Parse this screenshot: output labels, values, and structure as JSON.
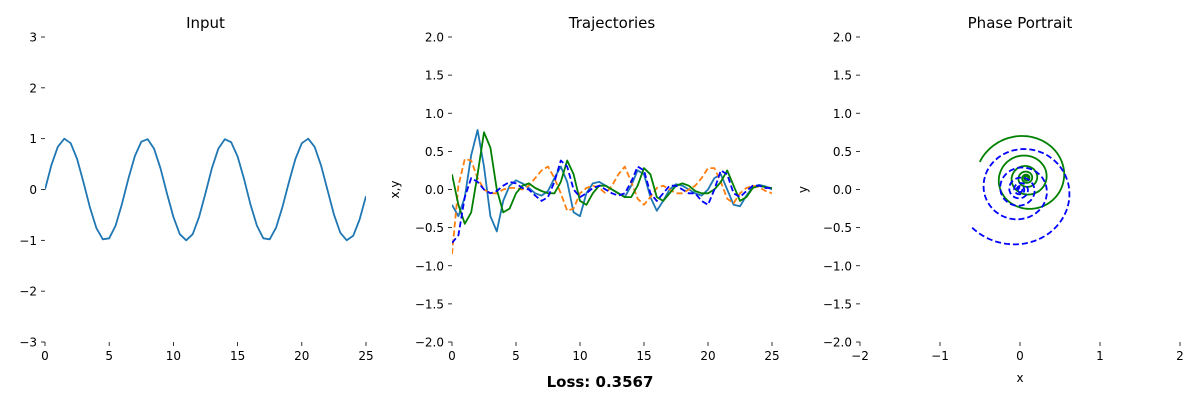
{
  "figure": {
    "loss_text": "Loss: 0.3567"
  },
  "chart_data": [
    {
      "type": "line",
      "title": "Input",
      "xlabel": "",
      "ylabel": "",
      "xlim": [
        0,
        25
      ],
      "ylim": [
        -3,
        3
      ],
      "xticks": [
        0,
        5,
        10,
        15,
        20,
        25
      ],
      "yticks": [
        -3,
        -2,
        -1,
        0,
        1,
        2,
        3
      ],
      "grid": false,
      "series": [
        {
          "color": "#1f77b4",
          "dash": "solid",
          "points": [
            [
              0,
              0
            ],
            [
              0.5,
              0.48
            ],
            [
              1,
              0.84
            ],
            [
              1.5,
              1.0
            ],
            [
              2,
              0.91
            ],
            [
              2.5,
              0.6
            ],
            [
              3,
              0.14
            ],
            [
              3.5,
              -0.35
            ],
            [
              4,
              -0.76
            ],
            [
              4.5,
              -0.98
            ],
            [
              5,
              -0.96
            ],
            [
              5.5,
              -0.71
            ],
            [
              6,
              -0.28
            ],
            [
              6.5,
              0.22
            ],
            [
              7,
              0.66
            ],
            [
              7.5,
              0.94
            ],
            [
              8,
              0.99
            ],
            [
              8.5,
              0.8
            ],
            [
              9,
              0.41
            ],
            [
              9.5,
              -0.08
            ],
            [
              10,
              -0.54
            ],
            [
              10.5,
              -0.88
            ],
            [
              11,
              -1.0
            ],
            [
              11.5,
              -0.88
            ],
            [
              12,
              -0.54
            ],
            [
              12.5,
              -0.07
            ],
            [
              13,
              0.42
            ],
            [
              13.5,
              0.8
            ],
            [
              14,
              0.99
            ],
            [
              14.5,
              0.93
            ],
            [
              15,
              0.65
            ],
            [
              15.5,
              0.21
            ],
            [
              16,
              -0.29
            ],
            [
              16.5,
              -0.71
            ],
            [
              17,
              -0.96
            ],
            [
              17.5,
              -0.98
            ],
            [
              18,
              -0.75
            ],
            [
              18.5,
              -0.34
            ],
            [
              19,
              0.15
            ],
            [
              19.5,
              0.6
            ],
            [
              20,
              0.91
            ],
            [
              20.5,
              1.0
            ],
            [
              21,
              0.84
            ],
            [
              21.5,
              0.47
            ],
            [
              22,
              -0.01
            ],
            [
              22.5,
              -0.49
            ],
            [
              23,
              -0.85
            ],
            [
              23.5,
              -1.0
            ],
            [
              24,
              -0.91
            ],
            [
              24.5,
              -0.59
            ],
            [
              25,
              -0.13
            ]
          ]
        }
      ]
    },
    {
      "type": "line",
      "title": "Trajectories",
      "xlabel": "",
      "ylabel": "x,y",
      "xlim": [
        0,
        25
      ],
      "ylim": [
        -2,
        2
      ],
      "xticks": [
        0,
        5,
        10,
        15,
        20,
        25
      ],
      "yticks": [
        -2.0,
        -1.5,
        -1.0,
        -0.5,
        0.0,
        0.5,
        1.0,
        1.5,
        2.0
      ],
      "grid": false,
      "series": [
        {
          "color": "#1f77b4",
          "dash": "solid",
          "points": [
            [
              0,
              -0.2
            ],
            [
              0.5,
              -0.35
            ],
            [
              1,
              -0.1
            ],
            [
              1.5,
              0.45
            ],
            [
              2,
              0.78
            ],
            [
              2.5,
              0.3
            ],
            [
              3,
              -0.35
            ],
            [
              3.5,
              -0.55
            ],
            [
              4,
              -0.15
            ],
            [
              4.5,
              0.05
            ],
            [
              5,
              0.12
            ],
            [
              5.5,
              0.08
            ],
            [
              6,
              0.02
            ],
            [
              6.5,
              -0.05
            ],
            [
              7,
              -0.08
            ],
            [
              7.5,
              -0.02
            ],
            [
              8,
              0.15
            ],
            [
              8.5,
              0.3
            ],
            [
              9,
              0.1
            ],
            [
              9.5,
              -0.3
            ],
            [
              10,
              -0.35
            ],
            [
              10.5,
              -0.05
            ],
            [
              11,
              0.08
            ],
            [
              11.5,
              0.1
            ],
            [
              12,
              0.05
            ],
            [
              12.5,
              0.0
            ],
            [
              13,
              -0.05
            ],
            [
              13.5,
              -0.1
            ],
            [
              14,
              0.05
            ],
            [
              14.5,
              0.25
            ],
            [
              15,
              0.2
            ],
            [
              15.5,
              -0.1
            ],
            [
              16,
              -0.28
            ],
            [
              16.5,
              -0.15
            ],
            [
              17,
              0.0
            ],
            [
              17.5,
              0.07
            ],
            [
              18,
              0.05
            ],
            [
              18.5,
              0.0
            ],
            [
              19,
              -0.05
            ],
            [
              19.5,
              -0.08
            ],
            [
              20,
              0.0
            ],
            [
              20.5,
              0.15
            ],
            [
              21,
              0.2
            ],
            [
              21.5,
              0.0
            ],
            [
              22,
              -0.2
            ],
            [
              22.5,
              -0.22
            ],
            [
              23,
              -0.08
            ],
            [
              23.5,
              0.03
            ],
            [
              24,
              0.06
            ],
            [
              24.5,
              0.04
            ],
            [
              25,
              0.0
            ]
          ]
        },
        {
          "color": "#ff7f0e",
          "dash": "dashed",
          "points": [
            [
              0,
              -0.85
            ],
            [
              0.5,
              0.05
            ],
            [
              1,
              0.4
            ],
            [
              1.5,
              0.38
            ],
            [
              2,
              0.15
            ],
            [
              2.5,
              0.0
            ],
            [
              3,
              -0.05
            ],
            [
              3.5,
              -0.05
            ],
            [
              4,
              0.0
            ],
            [
              4.5,
              0.02
            ],
            [
              5,
              0.02
            ],
            [
              5.5,
              0.0
            ],
            [
              6,
              0.05
            ],
            [
              6.5,
              0.15
            ],
            [
              7,
              0.25
            ],
            [
              7.5,
              0.3
            ],
            [
              8,
              0.15
            ],
            [
              8.5,
              -0.05
            ],
            [
              9,
              -0.28
            ],
            [
              9.5,
              -0.25
            ],
            [
              10,
              -0.05
            ],
            [
              10.5,
              0.02
            ],
            [
              11,
              0.05
            ],
            [
              11.5,
              0.02
            ],
            [
              12,
              -0.05
            ],
            [
              12.5,
              0.05
            ],
            [
              13,
              0.2
            ],
            [
              13.5,
              0.3
            ],
            [
              14,
              0.1
            ],
            [
              14.5,
              -0.12
            ],
            [
              15,
              -0.2
            ],
            [
              15.5,
              -0.1
            ],
            [
              16,
              0.02
            ],
            [
              16.5,
              0.05
            ],
            [
              17,
              0.0
            ],
            [
              17.5,
              -0.05
            ],
            [
              18,
              -0.05
            ],
            [
              18.5,
              0.0
            ],
            [
              19,
              0.05
            ],
            [
              19.5,
              0.15
            ],
            [
              20,
              0.28
            ],
            [
              20.5,
              0.28
            ],
            [
              21,
              0.1
            ],
            [
              21.5,
              -0.12
            ],
            [
              22,
              -0.18
            ],
            [
              22.5,
              -0.05
            ],
            [
              23,
              0.02
            ],
            [
              23.5,
              0.05
            ],
            [
              24,
              0.03
            ],
            [
              24.5,
              -0.02
            ],
            [
              25,
              -0.05
            ]
          ]
        },
        {
          "color": "#008000",
          "dash": "solid",
          "points": [
            [
              0,
              0.2
            ],
            [
              0.5,
              -0.2
            ],
            [
              1,
              -0.45
            ],
            [
              1.5,
              -0.3
            ],
            [
              2,
              0.2
            ],
            [
              2.5,
              0.75
            ],
            [
              3,
              0.55
            ],
            [
              3.5,
              0.0
            ],
            [
              4,
              -0.3
            ],
            [
              4.5,
              -0.25
            ],
            [
              5,
              -0.05
            ],
            [
              5.5,
              0.05
            ],
            [
              6,
              0.08
            ],
            [
              6.5,
              0.02
            ],
            [
              7,
              -0.02
            ],
            [
              7.5,
              -0.05
            ],
            [
              8,
              -0.05
            ],
            [
              8.5,
              0.1
            ],
            [
              9,
              0.38
            ],
            [
              9.5,
              0.2
            ],
            [
              10,
              -0.15
            ],
            [
              10.5,
              -0.2
            ],
            [
              11,
              -0.05
            ],
            [
              11.5,
              0.05
            ],
            [
              12,
              0.05
            ],
            [
              12.5,
              0.0
            ],
            [
              13,
              -0.05
            ],
            [
              13.5,
              -0.1
            ],
            [
              14,
              -0.1
            ],
            [
              14.5,
              0.05
            ],
            [
              15,
              0.28
            ],
            [
              15.5,
              0.2
            ],
            [
              16,
              -0.1
            ],
            [
              16.5,
              -0.15
            ],
            [
              17,
              -0.05
            ],
            [
              17.5,
              0.05
            ],
            [
              18,
              0.08
            ],
            [
              18.5,
              0.05
            ],
            [
              19,
              -0.02
            ],
            [
              19.5,
              -0.05
            ],
            [
              20,
              -0.05
            ],
            [
              20.5,
              0.0
            ],
            [
              21,
              0.1
            ],
            [
              21.5,
              0.25
            ],
            [
              22,
              0.05
            ],
            [
              22.5,
              -0.15
            ],
            [
              23,
              -0.1
            ],
            [
              23.5,
              0.02
            ],
            [
              24,
              0.05
            ],
            [
              24.5,
              0.03
            ],
            [
              25,
              0.02
            ]
          ]
        },
        {
          "color": "#0000ff",
          "dash": "dashed",
          "points": [
            [
              0,
              -0.7
            ],
            [
              0.5,
              -0.6
            ],
            [
              1,
              -0.1
            ],
            [
              1.5,
              0.15
            ],
            [
              2,
              0.1
            ],
            [
              2.5,
              0.0
            ],
            [
              3,
              -0.05
            ],
            [
              3.5,
              -0.02
            ],
            [
              4,
              0.05
            ],
            [
              4.5,
              0.1
            ],
            [
              5,
              0.08
            ],
            [
              5.5,
              0.02
            ],
            [
              6,
              0.0
            ],
            [
              6.5,
              -0.08
            ],
            [
              7,
              -0.15
            ],
            [
              7.5,
              -0.1
            ],
            [
              8,
              0.1
            ],
            [
              8.5,
              0.38
            ],
            [
              9,
              0.3
            ],
            [
              9.5,
              0.0
            ],
            [
              10,
              -0.1
            ],
            [
              10.5,
              -0.05
            ],
            [
              11,
              0.02
            ],
            [
              11.5,
              0.05
            ],
            [
              12,
              0.0
            ],
            [
              12.5,
              -0.05
            ],
            [
              13,
              -0.08
            ],
            [
              13.5,
              -0.05
            ],
            [
              14,
              0.1
            ],
            [
              14.5,
              0.3
            ],
            [
              15,
              0.25
            ],
            [
              15.5,
              -0.05
            ],
            [
              16,
              -0.15
            ],
            [
              16.5,
              -0.05
            ],
            [
              17,
              0.05
            ],
            [
              17.5,
              0.05
            ],
            [
              18,
              0.0
            ],
            [
              18.5,
              -0.05
            ],
            [
              19,
              -0.05
            ],
            [
              19.5,
              -0.15
            ],
            [
              20,
              -0.2
            ],
            [
              20.5,
              0.0
            ],
            [
              21,
              0.25
            ],
            [
              21.5,
              0.2
            ],
            [
              22,
              -0.05
            ],
            [
              22.5,
              -0.1
            ],
            [
              23,
              -0.02
            ],
            [
              23.5,
              0.05
            ],
            [
              24,
              0.05
            ],
            [
              24.5,
              0.02
            ],
            [
              25,
              0.02
            ]
          ]
        }
      ]
    },
    {
      "type": "line",
      "title": "Phase Portrait",
      "xlabel": "x",
      "ylabel": "y",
      "xlim": [
        -2,
        2
      ],
      "ylim": [
        -2,
        2
      ],
      "xticks": [
        -2,
        -1,
        0,
        1,
        2
      ],
      "yticks": [
        -2.0,
        -1.5,
        -1.0,
        -0.5,
        0.0,
        0.5,
        1.0,
        1.5,
        2.0
      ],
      "grid": false,
      "series": [
        {
          "color": "#008000",
          "dash": "solid",
          "spiral": {
            "cx": 0.08,
            "cy": 0.15,
            "r_start": 0.62,
            "r_end": 0.02,
            "turns": 5.5,
            "start_angle_deg": 160,
            "clockwise": true
          }
        },
        {
          "color": "#0000ff",
          "dash": "dashed",
          "spiral": {
            "cx": 0.0,
            "cy": 0.0,
            "r_start": 0.78,
            "r_end": 0.02,
            "turns": 6.0,
            "start_angle_deg": 220,
            "clockwise": false
          }
        }
      ]
    }
  ]
}
